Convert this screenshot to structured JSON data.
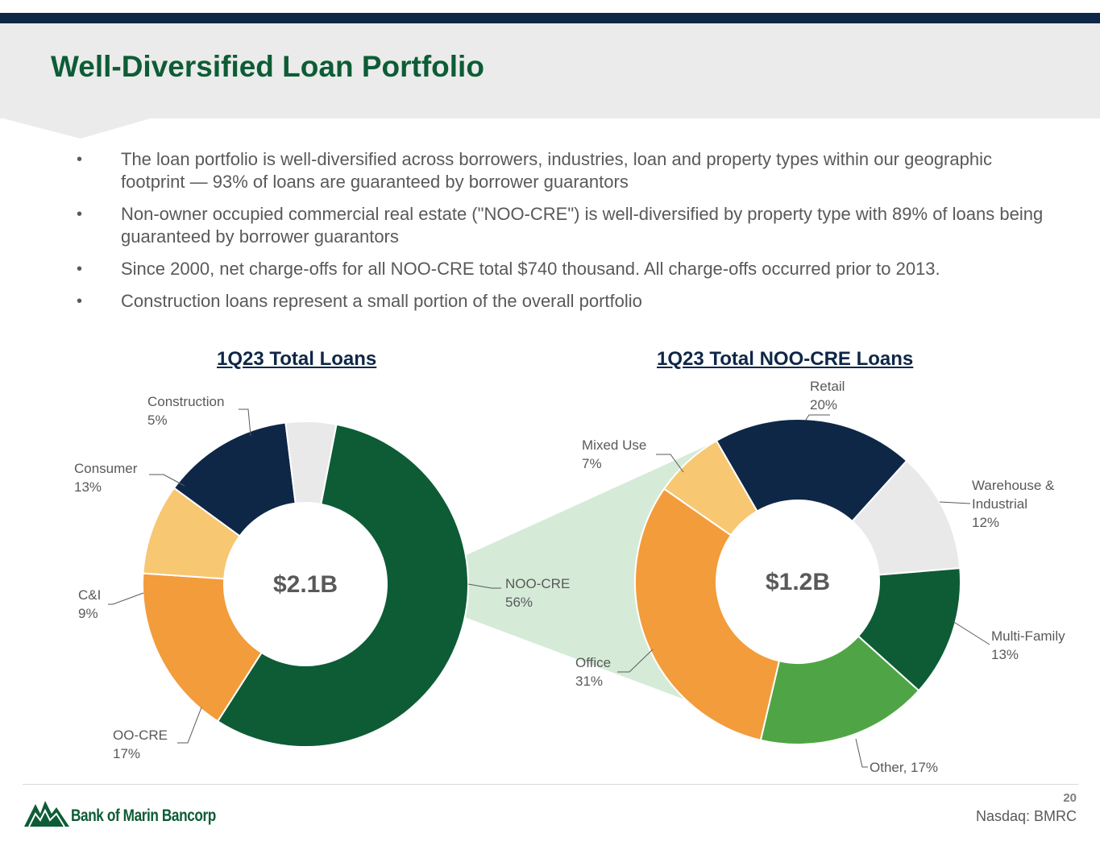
{
  "header": {
    "title": "Well-Diversified Loan Portfolio"
  },
  "bullets": [
    "The loan portfolio is well-diversified across borrowers, industries, loan and property types within our geographic footprint — 93% of loans are guaranteed by borrower guarantors",
    "Non-owner occupied commercial real estate (\"NOO-CRE\") is well-diversified by property type with 89% of loans being guaranteed by borrower guarantors",
    "Since 2000, net charge-offs for all NOO-CRE total $740 thousand. All charge-offs occurred prior to 2013.",
    "Construction loans represent a small portion of the overall portfolio"
  ],
  "bullet_marker": "•",
  "colors": {
    "dark_green": "#0d5c36",
    "navy": "#0f2747",
    "light_gray": "#e8e9e8",
    "light_orange": "#f7c772",
    "orange": "#f39c3b",
    "green": "#4fa545",
    "connector": "#d5ebd8"
  },
  "chart_data": [
    {
      "type": "pie",
      "variant": "donut",
      "title": "1Q23 Total Loans",
      "center_label": "$2.1B",
      "slices": [
        {
          "label": "NOO-CRE",
          "value": 56,
          "display": "56%",
          "color": "#0d5c36"
        },
        {
          "label": "OO-CRE",
          "value": 17,
          "display": "17%",
          "color": "#f39c3b"
        },
        {
          "label": "C&I",
          "value": 9,
          "display": "9%",
          "color": "#f7c772"
        },
        {
          "label": "Consumer",
          "value": 13,
          "display": "13%",
          "color": "#0f2747"
        },
        {
          "label": "Construction",
          "value": 5,
          "display": "5%",
          "color": "#e8e9e8"
        }
      ]
    },
    {
      "type": "pie",
      "variant": "donut",
      "title": "1Q23 Total NOO-CRE Loans",
      "center_label": "$1.2B",
      "slices": [
        {
          "label": "Retail",
          "value": 20,
          "display": "20%",
          "color": "#0f2747"
        },
        {
          "label": "Warehouse & Industrial",
          "value": 12,
          "display": "12%",
          "color": "#e8e9e8"
        },
        {
          "label": "Multi-Family",
          "value": 13,
          "display": "13%",
          "color": "#0d5c36"
        },
        {
          "label": "Other",
          "value": 17,
          "display": "Other, 17%",
          "color": "#4fa545"
        },
        {
          "label": "Office",
          "value": 31,
          "display": "31%",
          "color": "#f39c3b"
        },
        {
          "label": "Mixed Use",
          "value": 7,
          "display": "7%",
          "color": "#f7c772"
        }
      ]
    }
  ],
  "footer": {
    "page_number": "20",
    "ticker": "Nasdaq: BMRC",
    "logo_text": "Bank of Marin Bancorp"
  }
}
